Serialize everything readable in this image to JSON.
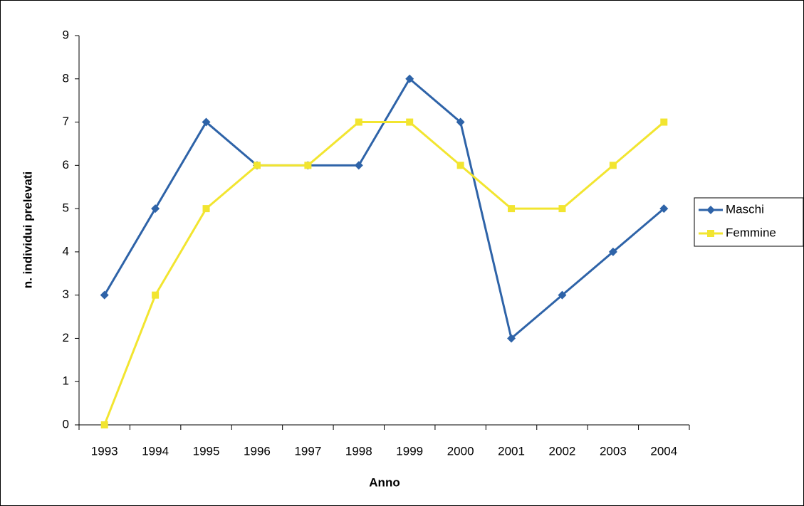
{
  "chart_data": {
    "type": "line",
    "x_label": "Anno",
    "y_label": "n. individui prelevati",
    "categories": [
      "1993",
      "1994",
      "1995",
      "1996",
      "1997",
      "1998",
      "1999",
      "2000",
      "2001",
      "2002",
      "2003",
      "2004"
    ],
    "series": [
      {
        "name": "Maschi",
        "color": "#2e63a8",
        "marker": "diamond",
        "values": [
          3,
          5,
          7,
          6,
          6,
          6,
          8,
          7,
          2,
          3,
          4,
          5
        ]
      },
      {
        "name": "Femmine",
        "color": "#f2e530",
        "marker": "square",
        "values": [
          0,
          3,
          5,
          6,
          6,
          7,
          7,
          6,
          5,
          5,
          6,
          7
        ]
      }
    ],
    "ylim": [
      0,
      9
    ],
    "yticks": [
      0,
      1,
      2,
      3,
      4,
      5,
      6,
      7,
      8,
      9
    ],
    "grid": false,
    "legend": "right"
  }
}
